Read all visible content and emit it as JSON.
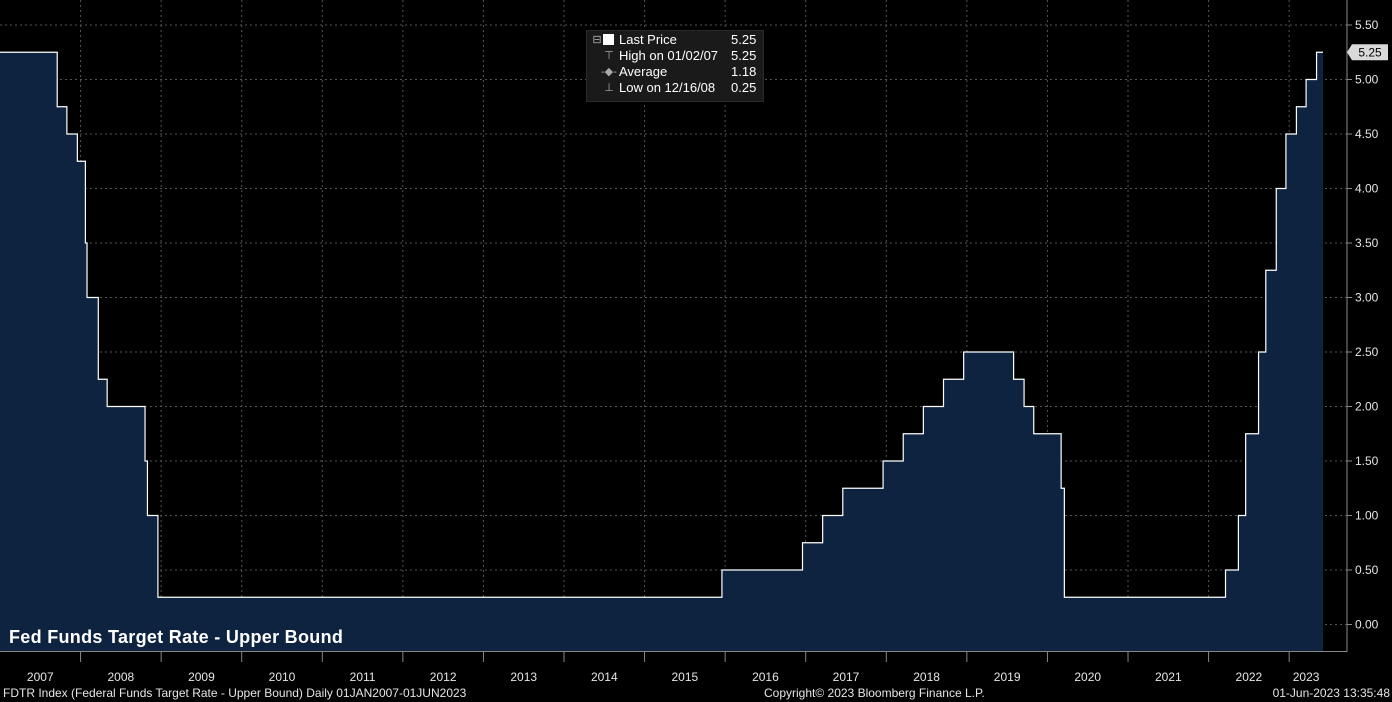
{
  "legend": {
    "last_price_label": "Last Price",
    "last_price_value": "5.25",
    "high_label": "High on 01/02/07",
    "high_value": "5.25",
    "average_label": "Average",
    "average_value": "1.18",
    "low_label": "Low on 12/16/08",
    "low_value": "0.25"
  },
  "footer": {
    "left": "FDTR Index (Federal Funds Target Rate - Upper Bound)  Daily 01JAN2007-01JUN2023",
    "center": "Copyright© 2023 Bloomberg Finance L.P.",
    "right": "01-Jun-2023 13:35:48"
  },
  "chart_data": {
    "type": "area",
    "title": "Fed Funds Target Rate - Upper Bound",
    "xlabel": "",
    "ylabel": "",
    "x_range": [
      2007.0,
      2023.42
    ],
    "ylim": [
      -0.25,
      5.75
    ],
    "y_ticks": [
      "0.00",
      "0.50",
      "1.00",
      "1.50",
      "2.00",
      "2.50",
      "3.00",
      "3.50",
      "4.00",
      "4.50",
      "5.00",
      "5.50"
    ],
    "x_tick_labels": [
      "2007",
      "2008",
      "2009",
      "2010",
      "2011",
      "2012",
      "2013",
      "2014",
      "2015",
      "2016",
      "2017",
      "2018",
      "2019",
      "2020",
      "2021",
      "2022",
      "2023"
    ],
    "last_value_label": "5.25",
    "grid": true,
    "colors": {
      "fill": "#0e2340",
      "line": "#ffffff",
      "grid": "#555555",
      "axis_text": "#e6e6e6",
      "last_tag": "#d9d9d9"
    },
    "series": [
      {
        "name": "Last Price",
        "step": true,
        "x": [
          2007.0,
          2007.71,
          2007.83,
          2007.96,
          2008.06,
          2008.08,
          2008.22,
          2008.33,
          2008.8,
          2008.83,
          2008.96,
          2015.96,
          2016.96,
          2017.21,
          2017.46,
          2017.96,
          2018.21,
          2018.46,
          2018.71,
          2018.96,
          2019.58,
          2019.71,
          2019.83,
          2020.17,
          2020.21,
          2022.21,
          2022.37,
          2022.46,
          2022.62,
          2022.71,
          2022.84,
          2022.96,
          2023.09,
          2023.21,
          2023.34,
          2023.42
        ],
        "y": [
          5.25,
          4.75,
          4.5,
          4.25,
          3.5,
          3.0,
          2.25,
          2.0,
          1.5,
          1.0,
          0.25,
          0.5,
          0.75,
          1.0,
          1.25,
          1.5,
          1.75,
          2.0,
          2.25,
          2.5,
          2.25,
          2.0,
          1.75,
          1.25,
          0.25,
          0.5,
          1.0,
          1.75,
          2.5,
          3.25,
          4.0,
          4.5,
          4.75,
          5.0,
          5.25,
          5.25
        ]
      }
    ]
  }
}
